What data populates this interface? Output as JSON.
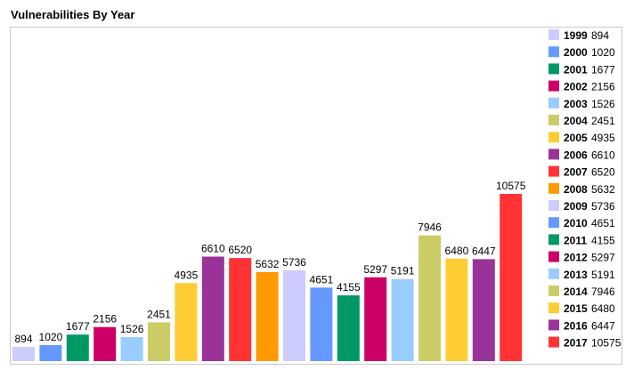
{
  "chart_data": {
    "type": "bar",
    "title": "Vulnerabilities By Year",
    "categories": [
      "1999",
      "2000",
      "2001",
      "2002",
      "2003",
      "2004",
      "2005",
      "2006",
      "2007",
      "2008",
      "2009",
      "2010",
      "2011",
      "2012",
      "2013",
      "2014",
      "2015",
      "2016",
      "2017"
    ],
    "values": [
      894,
      1020,
      1677,
      2156,
      1526,
      2451,
      4935,
      6610,
      6520,
      5632,
      5736,
      4651,
      4155,
      5297,
      5191,
      7946,
      6480,
      6447,
      10575
    ],
    "colors": [
      "#ccccff",
      "#6699ff",
      "#009966",
      "#cc0066",
      "#99ccff",
      "#cccc66",
      "#ffcc33",
      "#993399",
      "#ff3333",
      "#ff9900",
      "#ccccff",
      "#6699ff",
      "#009966",
      "#cc0066",
      "#99ccff",
      "#cccc66",
      "#ffcc33",
      "#993399",
      "#ff3333"
    ],
    "ylim": [
      0,
      10575
    ],
    "legend": "right",
    "grid": false
  }
}
